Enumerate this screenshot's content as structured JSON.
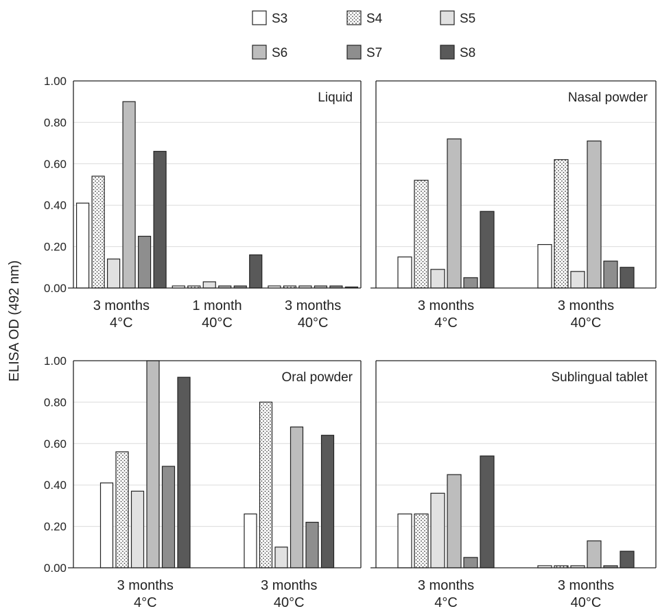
{
  "chart_data": {
    "type": "bar",
    "ylabel": "ELISA OD (492 nm)",
    "xlabel": "",
    "ylim": [
      0,
      1.0
    ],
    "yticks": [
      "0.00",
      "0.20",
      "0.40",
      "0.60",
      "0.80",
      "1.00"
    ],
    "grid": true,
    "legend_position": "top",
    "series_names": [
      "S3",
      "S4",
      "S5",
      "S6",
      "S7",
      "S8"
    ],
    "series_styles": [
      {
        "fill": "#ffffff",
        "pattern": "none"
      },
      {
        "fill": "#ffffff",
        "pattern": "dots"
      },
      {
        "fill": "#e1e1e1",
        "pattern": "none"
      },
      {
        "fill": "#bdbdbd",
        "pattern": "none"
      },
      {
        "fill": "#8e8e8e",
        "pattern": "none"
      },
      {
        "fill": "#595959",
        "pattern": "none"
      }
    ],
    "panels": [
      {
        "title": "Liquid",
        "categories": [
          [
            "3 months",
            "4°C"
          ],
          [
            "1 month",
            "40°C"
          ],
          [
            "3 months",
            "40°C"
          ]
        ],
        "values": [
          [
            0.41,
            0.54,
            0.14,
            0.9,
            0.25,
            0.66
          ],
          [
            0.01,
            0.01,
            0.03,
            0.01,
            0.01,
            0.16
          ],
          [
            0.01,
            0.01,
            0.01,
            0.01,
            0.01,
            0.005
          ]
        ]
      },
      {
        "title": "Nasal powder",
        "categories": [
          [
            "3 months",
            "4°C"
          ],
          [
            "3 months",
            "40°C"
          ]
        ],
        "values": [
          [
            0.15,
            0.52,
            0.09,
            0.72,
            0.05,
            0.37
          ],
          [
            0.21,
            0.62,
            0.08,
            0.71,
            0.13,
            0.1
          ]
        ]
      },
      {
        "title": "Oral powder",
        "categories": [
          [
            "3 months",
            "4°C"
          ],
          [
            "3 months",
            "40°C"
          ]
        ],
        "values": [
          [
            0.41,
            0.56,
            0.37,
            1.0,
            0.49,
            0.92
          ],
          [
            0.26,
            0.8,
            0.1,
            0.68,
            0.22,
            0.64
          ]
        ]
      },
      {
        "title": "Sublingual tablet",
        "categories": [
          [
            "3 months",
            "4°C"
          ],
          [
            "3 months",
            "40°C"
          ]
        ],
        "values": [
          [
            0.26,
            0.26,
            0.36,
            0.45,
            0.05,
            0.54
          ],
          [
            0.01,
            0.01,
            0.01,
            0.13,
            0.01,
            0.08
          ]
        ]
      }
    ]
  }
}
